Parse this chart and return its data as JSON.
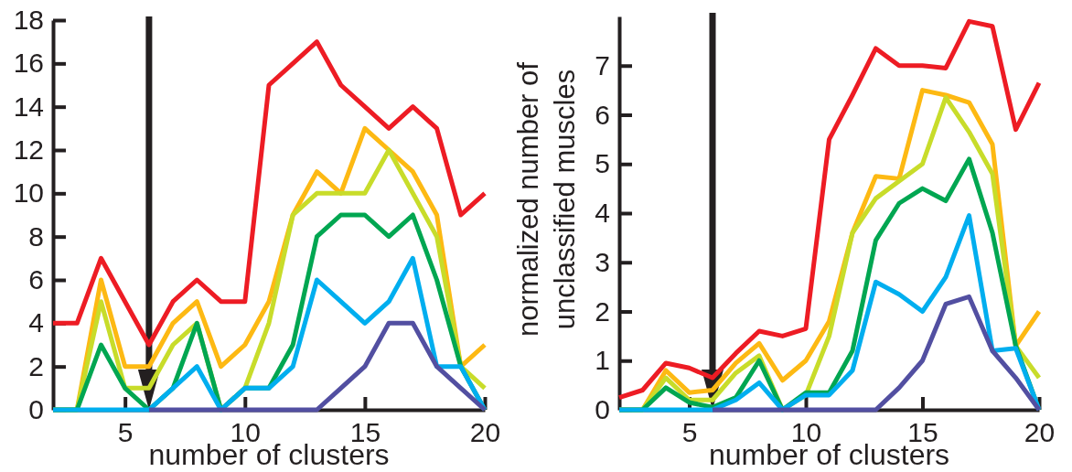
{
  "chart_data": [
    {
      "type": "line",
      "xlabel": "number of clusters",
      "x": [
        2,
        3,
        4,
        5,
        6,
        7,
        8,
        9,
        10,
        11,
        12,
        13,
        14,
        15,
        16,
        17,
        18,
        19,
        20
      ],
      "xlim": [
        2,
        20
      ],
      "xticks": [
        5,
        10,
        15,
        20
      ],
      "ylim": [
        0,
        18
      ],
      "yticks": [
        0,
        2,
        4,
        6,
        8,
        10,
        12,
        14,
        16,
        18
      ],
      "grid": false,
      "marker": "none",
      "line_style": "solid",
      "ref_lines": [
        {
          "axis": "x",
          "value": 6,
          "color": "#231f20"
        }
      ],
      "series": [
        {
          "color": "#ed1c24",
          "values": [
            4,
            4,
            7,
            5,
            3,
            5,
            6,
            5,
            5,
            15,
            16,
            17,
            15,
            14,
            13,
            14,
            13,
            9,
            10
          ]
        },
        {
          "color": "#fdb913",
          "values": [
            0,
            0,
            6,
            2,
            2,
            4,
            5,
            2,
            3,
            5,
            9,
            11,
            10,
            13,
            12,
            11,
            9,
            2,
            3
          ]
        },
        {
          "color": "#c8dc2a",
          "values": [
            0,
            0,
            5,
            1,
            1,
            3,
            4,
            0,
            1,
            4,
            9,
            10,
            10,
            10,
            12,
            10,
            8,
            2,
            1
          ]
        },
        {
          "color": "#00a651",
          "values": [
            0,
            0,
            3,
            1,
            0,
            1,
            4,
            0,
            1,
            1,
            3,
            8,
            9,
            9,
            8,
            9,
            6,
            2,
            0
          ]
        },
        {
          "color": "#00aeef",
          "values": [
            0,
            0,
            0,
            0,
            0,
            1,
            2,
            0,
            1,
            1,
            2,
            6,
            5,
            4,
            5,
            7,
            2,
            2,
            0
          ]
        },
        {
          "color": "#524fa1",
          "values": [
            null,
            null,
            null,
            null,
            0,
            0,
            0,
            0,
            0,
            0,
            0,
            0,
            1,
            2,
            4,
            4,
            2,
            1,
            0
          ]
        }
      ]
    },
    {
      "type": "line",
      "xlabel": "number of clusters",
      "ylabel": "normalized number of\nunclassified muscles",
      "x": [
        2,
        3,
        4,
        5,
        6,
        7,
        8,
        9,
        10,
        11,
        12,
        13,
        14,
        15,
        16,
        17,
        18,
        19,
        20
      ],
      "xlim": [
        2,
        20
      ],
      "xticks": [
        5,
        10,
        15,
        20
      ],
      "ylim": [
        0,
        8
      ],
      "yticks": [
        0,
        1,
        2,
        3,
        4,
        5,
        6,
        7
      ],
      "grid": false,
      "marker": "none",
      "line_style": "solid",
      "ref_lines": [
        {
          "axis": "x",
          "value": 6,
          "color": "#231f20"
        }
      ],
      "series": [
        {
          "color": "#ed1c24",
          "values": [
            0.25,
            0.4,
            0.95,
            0.85,
            0.65,
            1.15,
            1.6,
            1.5,
            1.65,
            5.5,
            6.4,
            7.35,
            7.0,
            7.0,
            6.95,
            7.9,
            7.8,
            5.7,
            6.65
          ]
        },
        {
          "color": "#fdb913",
          "values": [
            0,
            0,
            0.8,
            0.35,
            0.4,
            0.95,
            1.35,
            0.6,
            1.0,
            1.8,
            3.6,
            4.75,
            4.7,
            6.5,
            6.4,
            6.25,
            5.4,
            1.3,
            2.0
          ]
        },
        {
          "color": "#c8dc2a",
          "values": [
            0,
            0,
            0.65,
            0.2,
            0.2,
            0.75,
            1.1,
            0,
            0.3,
            1.5,
            3.6,
            4.3,
            4.65,
            5.0,
            6.35,
            5.65,
            4.8,
            1.3,
            0.65
          ]
        },
        {
          "color": "#00a651",
          "values": [
            0,
            0,
            0.45,
            0.15,
            0.05,
            0.25,
            1.0,
            0,
            0.35,
            0.35,
            1.2,
            3.45,
            4.2,
            4.5,
            4.25,
            5.1,
            3.6,
            1.3,
            0
          ]
        },
        {
          "color": "#00aeef",
          "values": [
            0,
            0,
            0,
            0,
            0,
            0.2,
            0.55,
            0,
            0.3,
            0.3,
            0.8,
            2.6,
            2.35,
            2.0,
            2.7,
            3.95,
            1.2,
            1.25,
            0
          ]
        },
        {
          "color": "#524fa1",
          "values": [
            null,
            null,
            null,
            null,
            0,
            0,
            0,
            0,
            0,
            0,
            0,
            0,
            0.45,
            1.0,
            2.15,
            2.3,
            1.2,
            0.65,
            0
          ]
        }
      ]
    }
  ]
}
